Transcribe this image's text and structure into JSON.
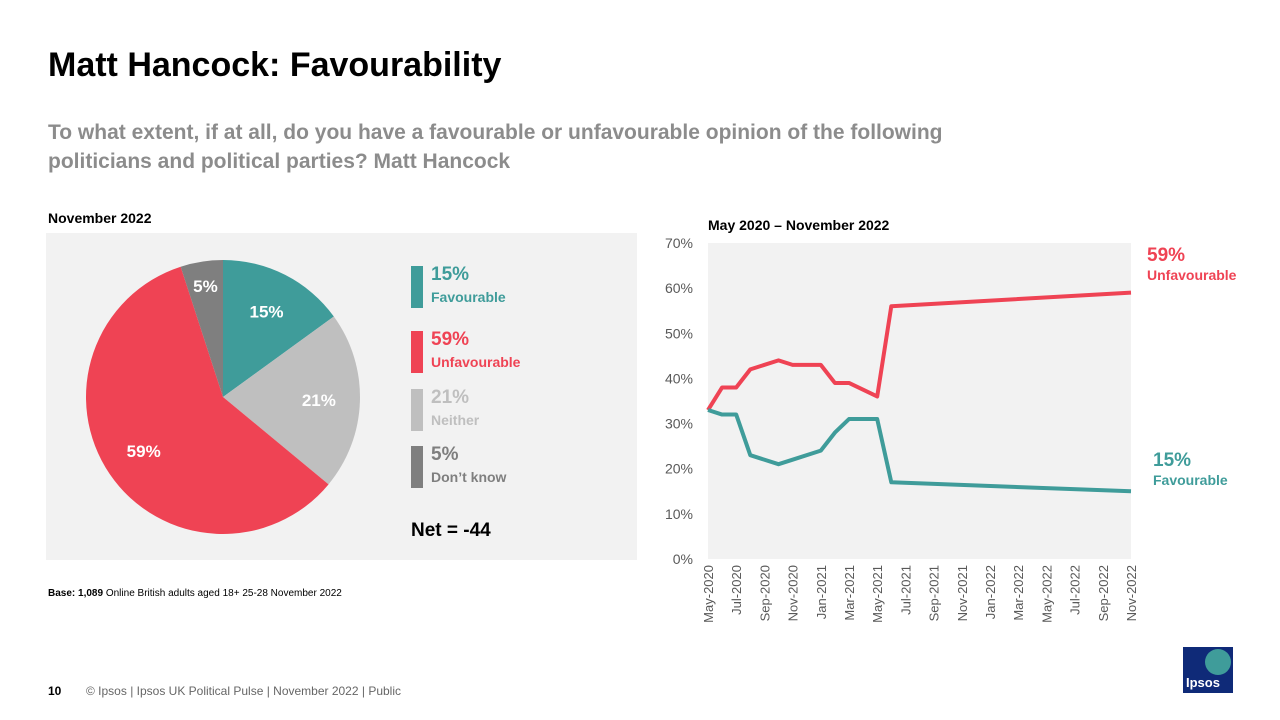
{
  "title": "Matt Hancock: Favourability",
  "subtitle": "To what extent, if at all, do you have a favourable or unfavourable opinion of the following politicians and political parties? Matt Hancock",
  "colors": {
    "favourable": "#3f9c9a",
    "unfavourable": "#ef4354",
    "neither": "#bfbfbf",
    "dont_know": "#7f7f7f"
  },
  "net": "Net = -44",
  "base": {
    "label": "Base:",
    "n": "1,089",
    "text": "Online British adults aged 18+ 25-28 November 2022"
  },
  "footer": {
    "page": "10",
    "text": "© Ipsos |  Ipsos UK Political Pulse | November  2022 | Public",
    "logo": "Ipsos"
  },
  "chart_data": [
    {
      "type": "pie",
      "title": "November 2022",
      "slices": [
        {
          "name": "Favourable",
          "value": 15,
          "label": "15%",
          "color": "#3f9c9a"
        },
        {
          "name": "Neither",
          "value": 21,
          "label": "21%",
          "color": "#bfbfbf"
        },
        {
          "name": "Unfavourable",
          "value": 59,
          "label": "59%",
          "color": "#ef4354"
        },
        {
          "name": "Don't know",
          "value": 5,
          "label": "5%",
          "color": "#7f7f7f"
        }
      ],
      "legend": [
        {
          "pct": "15%",
          "label": "Favourable",
          "color": "#3f9c9a"
        },
        {
          "pct": "59%",
          "label": "Unfavourable",
          "color": "#ef4354"
        },
        {
          "pct": "21%",
          "label": "Neither",
          "color": "#bfbfbf"
        },
        {
          "pct": "5%",
          "label": "Don’t know",
          "color": "#7f7f7f"
        }
      ]
    },
    {
      "type": "line",
      "title": "May 2020 – November 2022",
      "ylim": [
        0,
        70
      ],
      "yticks": [
        "0%",
        "10%",
        "20%",
        "30%",
        "40%",
        "50%",
        "60%",
        "70%"
      ],
      "xticks": [
        "May-2020",
        "Jul-2020",
        "Sep-2020",
        "Nov-2020",
        "Jan-2021",
        "Mar-2021",
        "May-2021",
        "Jul-2021",
        "Sep-2021",
        "Nov-2021",
        "Jan-2022",
        "Mar-2022",
        "May-2022",
        "Jul-2022",
        "Sep-2022",
        "Nov-2022"
      ],
      "x": [
        "2020-05",
        "2020-06",
        "2020-07",
        "2020-08",
        "2020-10",
        "2020-11",
        "2021-01",
        "2021-02",
        "2021-03",
        "2021-05",
        "2021-06",
        "2022-11"
      ],
      "series": [
        {
          "name": "Unfavourable",
          "color": "#ef4354",
          "values": [
            33,
            38,
            38,
            42,
            44,
            43,
            43,
            39,
            39,
            36,
            56,
            59
          ],
          "end_label": "59%"
        },
        {
          "name": "Favourable",
          "color": "#3f9c9a",
          "values": [
            33,
            32,
            32,
            23,
            21,
            22,
            24,
            28,
            31,
            31,
            17,
            15
          ],
          "end_label": "15%"
        }
      ]
    }
  ]
}
